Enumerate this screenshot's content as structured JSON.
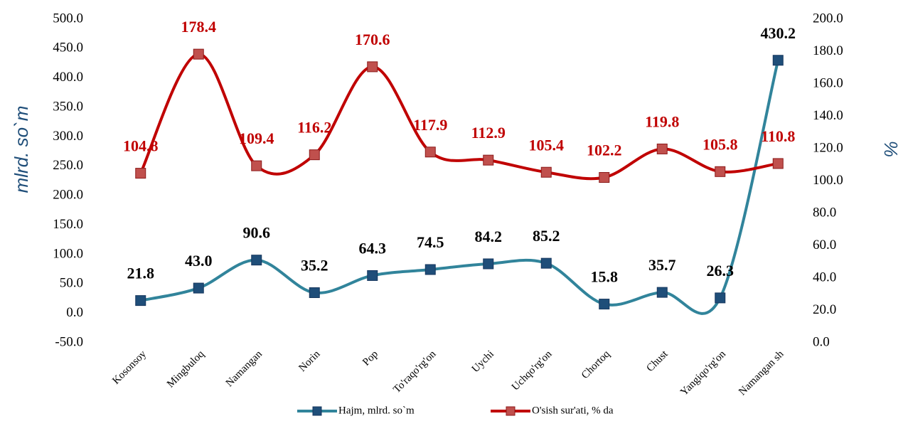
{
  "chart_data": {
    "type": "line",
    "categories": [
      "Kosonsoy",
      "Mingbuloq",
      "Namangan",
      "Norin",
      "Pop",
      "To'raqo'rg'on",
      "Uychi",
      "Uchqo'rg'on",
      "Chortoq",
      "Chust",
      "Yangiqo'rg'on",
      "Namangan sh"
    ],
    "series": [
      {
        "name": "Hajm, mlrd. so`m",
        "color": "#31849b",
        "marker_color": "#1f4e79",
        "values": [
          21.8,
          43.0,
          90.6,
          35.2,
          64.3,
          74.5,
          84.2,
          85.2,
          15.8,
          35.7,
          26.3,
          430.2
        ],
        "value_labels": [
          "21.8",
          "43.0",
          "90.6",
          "35.2",
          "64.3",
          "74.5",
          "84.2",
          "85.2",
          "15.8",
          "35.7",
          "26.3",
          "430.2"
        ],
        "label_color": "#000000"
      },
      {
        "name": "O'sish sur'ati, % da",
        "color": "#c00000",
        "marker_color": "#c0504d",
        "axis": "y2",
        "values": [
          104.8,
          178.4,
          109.4,
          116.2,
          170.6,
          117.9,
          112.9,
          105.4,
          102.2,
          119.8,
          105.8,
          110.8
        ],
        "value_labels": [
          "104.8",
          "178.4",
          "109.4",
          "116.2",
          "170.6",
          "117.9",
          "112.9",
          "105.4",
          "102.2",
          "119.8",
          "105.8",
          "110.8"
        ],
        "label_color": "#c00000"
      }
    ],
    "ylabel": "mlrd. so`m",
    "y2label": "%",
    "ylim": [
      -50,
      500
    ],
    "yticks": [
      {
        "value": -50,
        "label": "-50.0"
      },
      {
        "value": 0,
        "label": "0.0"
      },
      {
        "value": 50,
        "label": "50.0"
      },
      {
        "value": 100,
        "label": "100.0"
      },
      {
        "value": 150,
        "label": "150.0"
      },
      {
        "value": 200,
        "label": "200.0"
      },
      {
        "value": 250,
        "label": "250.0"
      },
      {
        "value": 300,
        "label": "300.0"
      },
      {
        "value": 350,
        "label": "350.0"
      },
      {
        "value": 400,
        "label": "400.0"
      },
      {
        "value": 450,
        "label": "450.0"
      },
      {
        "value": 500,
        "label": "500.0"
      }
    ],
    "y2lim": [
      0,
      200
    ],
    "y2ticks": [
      {
        "value": 0,
        "label": "0.0"
      },
      {
        "value": 20,
        "label": "20.0"
      },
      {
        "value": 40,
        "label": "40.0"
      },
      {
        "value": 60,
        "label": "60.0"
      },
      {
        "value": 80,
        "label": "80.0"
      },
      {
        "value": 100,
        "label": "100.0"
      },
      {
        "value": 120,
        "label": "120.0"
      },
      {
        "value": 140,
        "label": "140.0"
      },
      {
        "value": 160,
        "label": "160.0"
      },
      {
        "value": 180,
        "label": "180.0"
      },
      {
        "value": 200,
        "label": "200.0"
      }
    ],
    "smooth": true,
    "grid": false,
    "legend": "bottom"
  }
}
